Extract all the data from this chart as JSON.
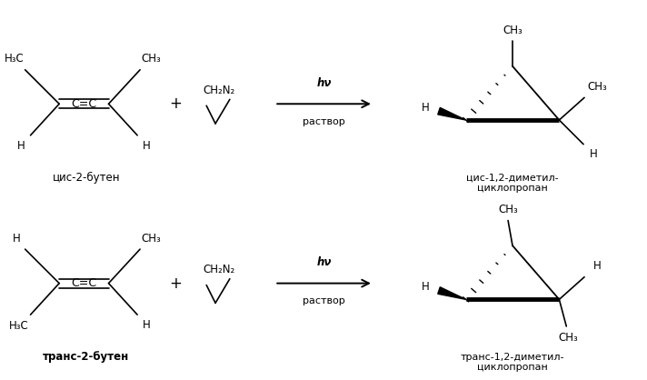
{
  "bg_color": "#ffffff",
  "line_color": "#000000",
  "text_color": "#000000",
  "figsize": [
    7.12,
    4.18
  ],
  "dpi": 100,
  "reaction1_name": "цис-2-бутен",
  "reaction1_product": "цис-1,2-диметил-\nциклопропан",
  "reaction2_name": "транс-2-бутен",
  "reaction2_product": "транс-1,2-диметил-\nциклопропан",
  "hv": "hν",
  "rastvor": "раствор"
}
